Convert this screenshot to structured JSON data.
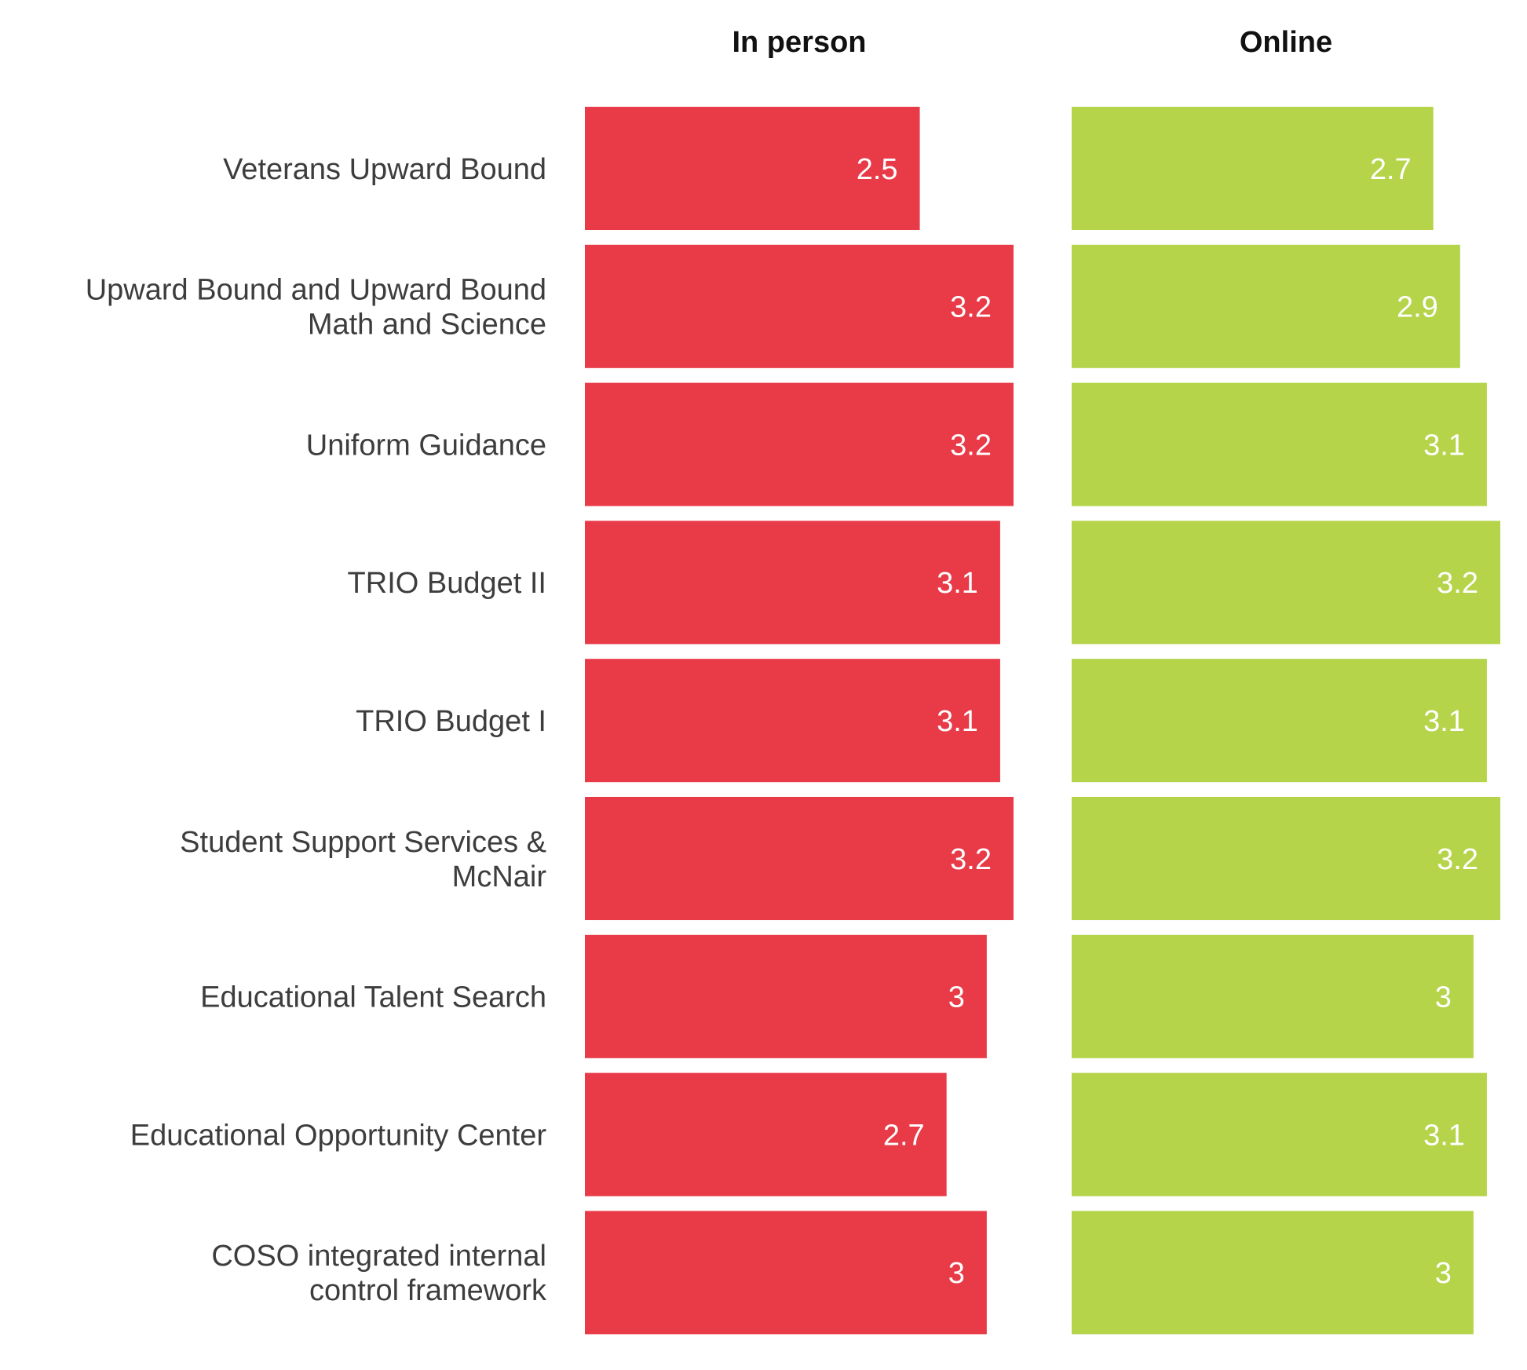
{
  "chart_data": {
    "type": "bar",
    "orientation": "horizontal",
    "layout": "faceted",
    "categories": [
      [
        "Veterans Upward Bound"
      ],
      [
        "Upward Bound and Upward Bound",
        "Math and Science"
      ],
      [
        "Uniform Guidance"
      ],
      [
        "TRIO Budget II"
      ],
      [
        "TRIO Budget I"
      ],
      [
        "Student Support Services &",
        "McNair"
      ],
      [
        "Educational Talent Search"
      ],
      [
        "Educational Opportunity Center"
      ],
      [
        "COSO integrated internal",
        "control framework"
      ]
    ],
    "series": [
      {
        "name": "In person",
        "color": "#e83a47",
        "values": [
          2.5,
          3.2,
          3.2,
          3.1,
          3.1,
          3.2,
          3.0,
          2.7,
          3.0
        ],
        "labels": [
          "2.5",
          "3.2",
          "3.2",
          "3.1",
          "3.1",
          "3.2",
          "3",
          "2.7",
          "3"
        ]
      },
      {
        "name": "Online",
        "color": "#b5d44a",
        "values": [
          2.7,
          2.9,
          3.1,
          3.2,
          3.1,
          3.2,
          3.0,
          3.1,
          3.0
        ],
        "labels": [
          "2.7",
          "2.9",
          "3.1",
          "3.2",
          "3.1",
          "3.2",
          "3",
          "3.1",
          "3"
        ]
      }
    ],
    "xlim": [
      0,
      3.2
    ],
    "grid": false,
    "legend": "none"
  }
}
